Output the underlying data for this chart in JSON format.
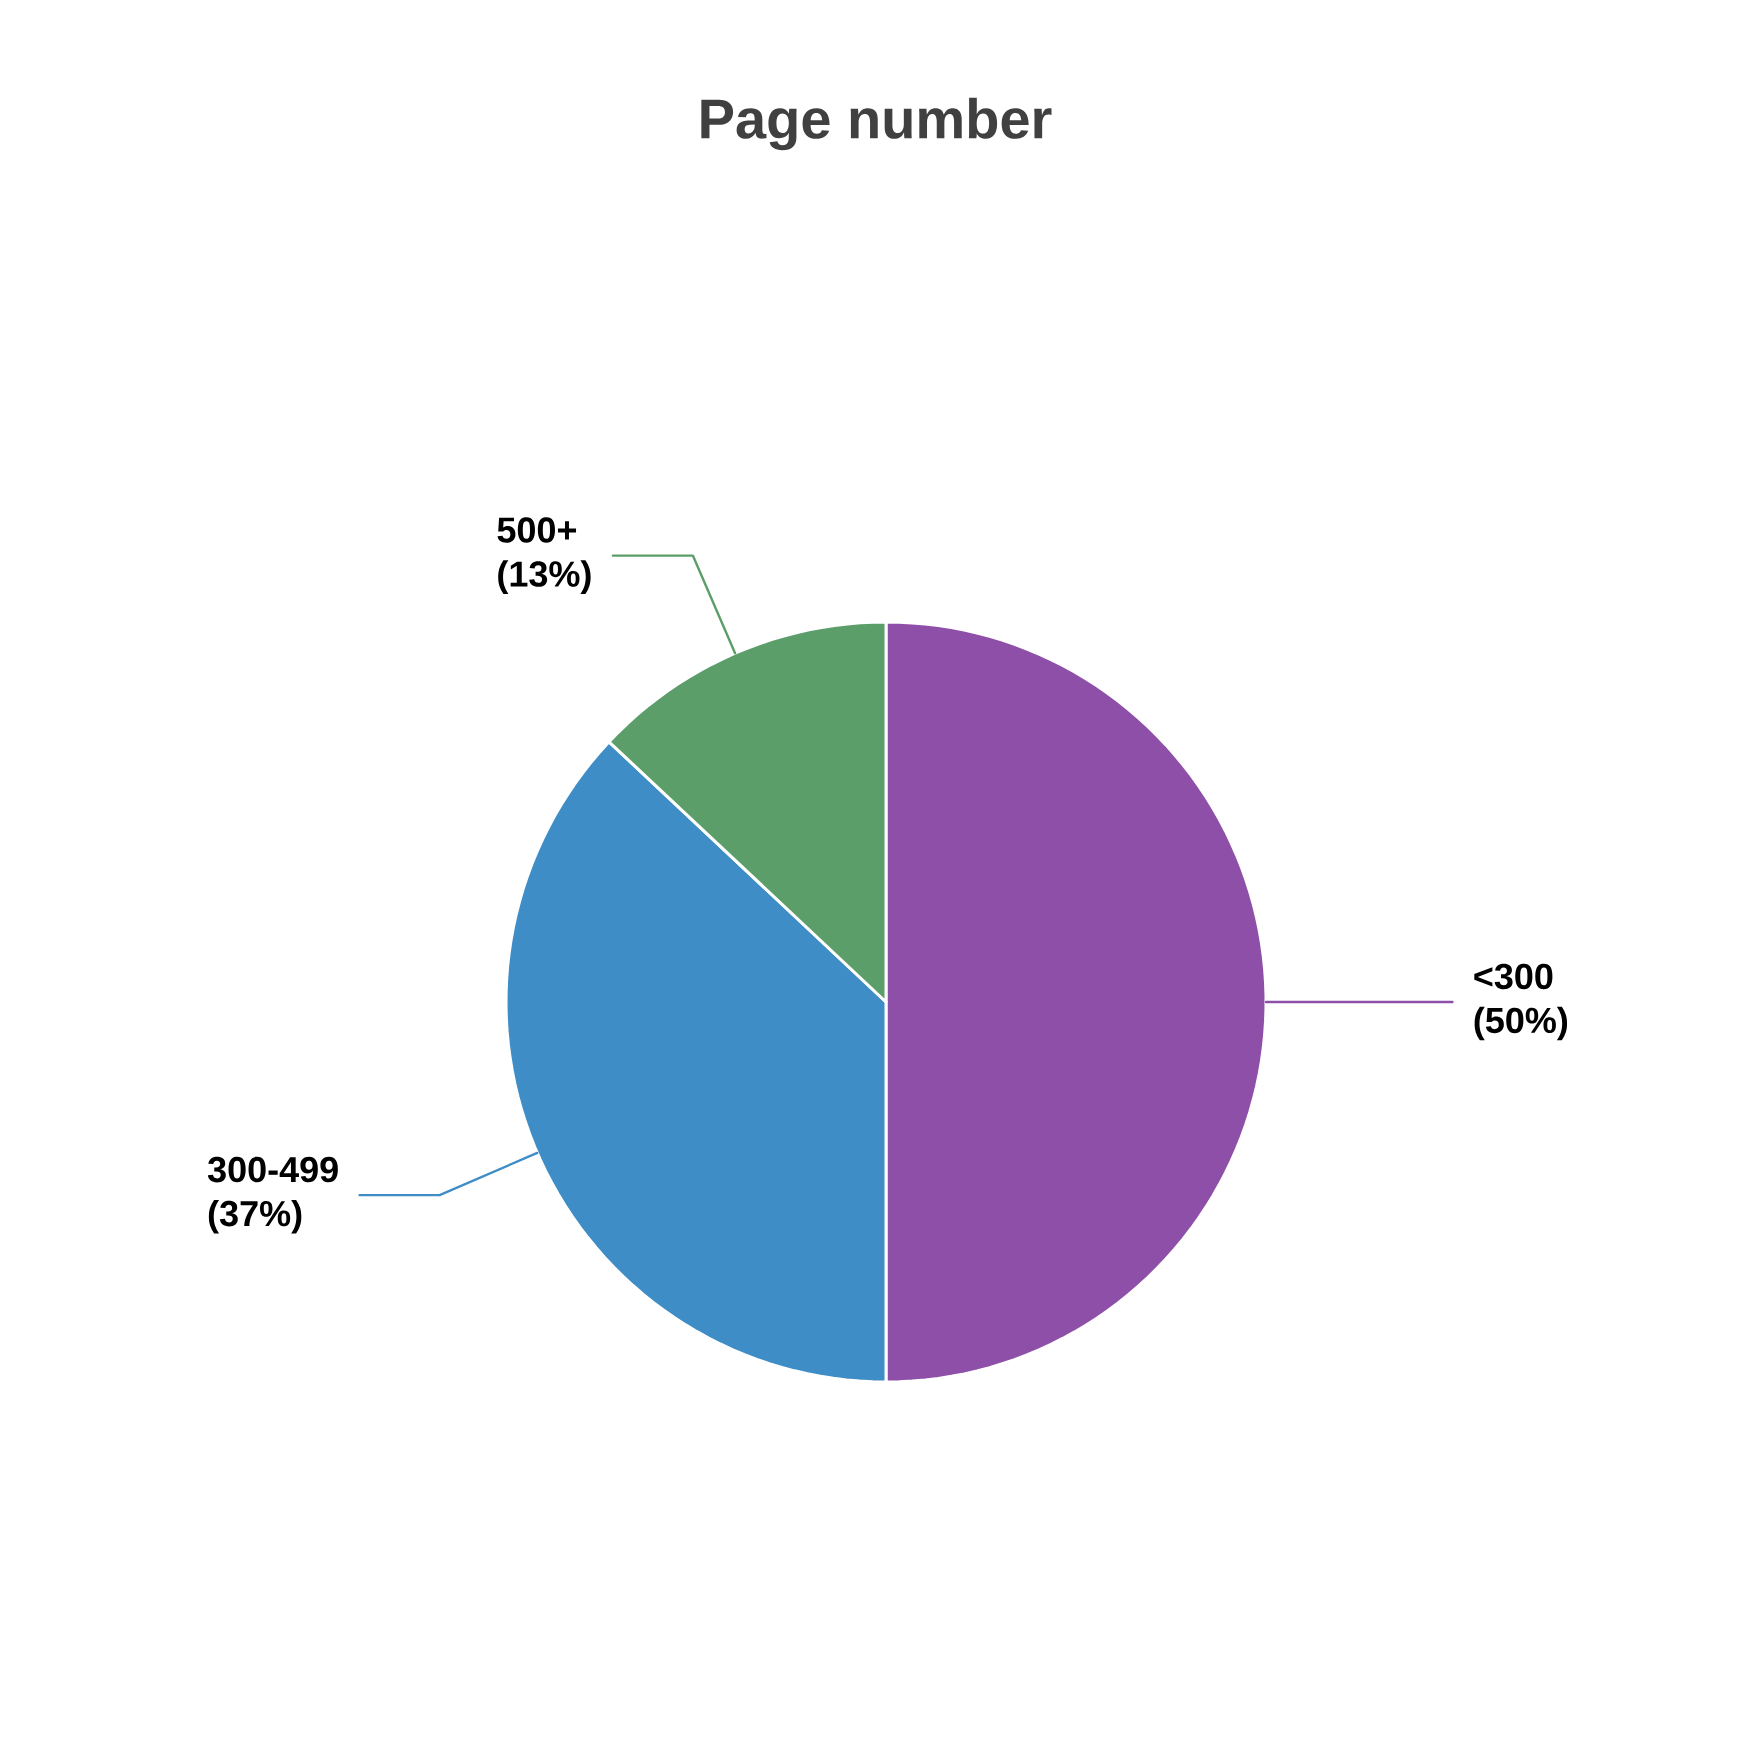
{
  "chart_data": {
    "type": "pie",
    "title": "Page number",
    "categories": [
      "<300",
      "300-499",
      "500+"
    ],
    "values": [
      50,
      37,
      13
    ],
    "value_labels": [
      "(50%)",
      "(37%)",
      "(13%)"
    ],
    "colors": [
      "#8e4fa8",
      "#3f8dc6",
      "#5c9e6a"
    ]
  }
}
